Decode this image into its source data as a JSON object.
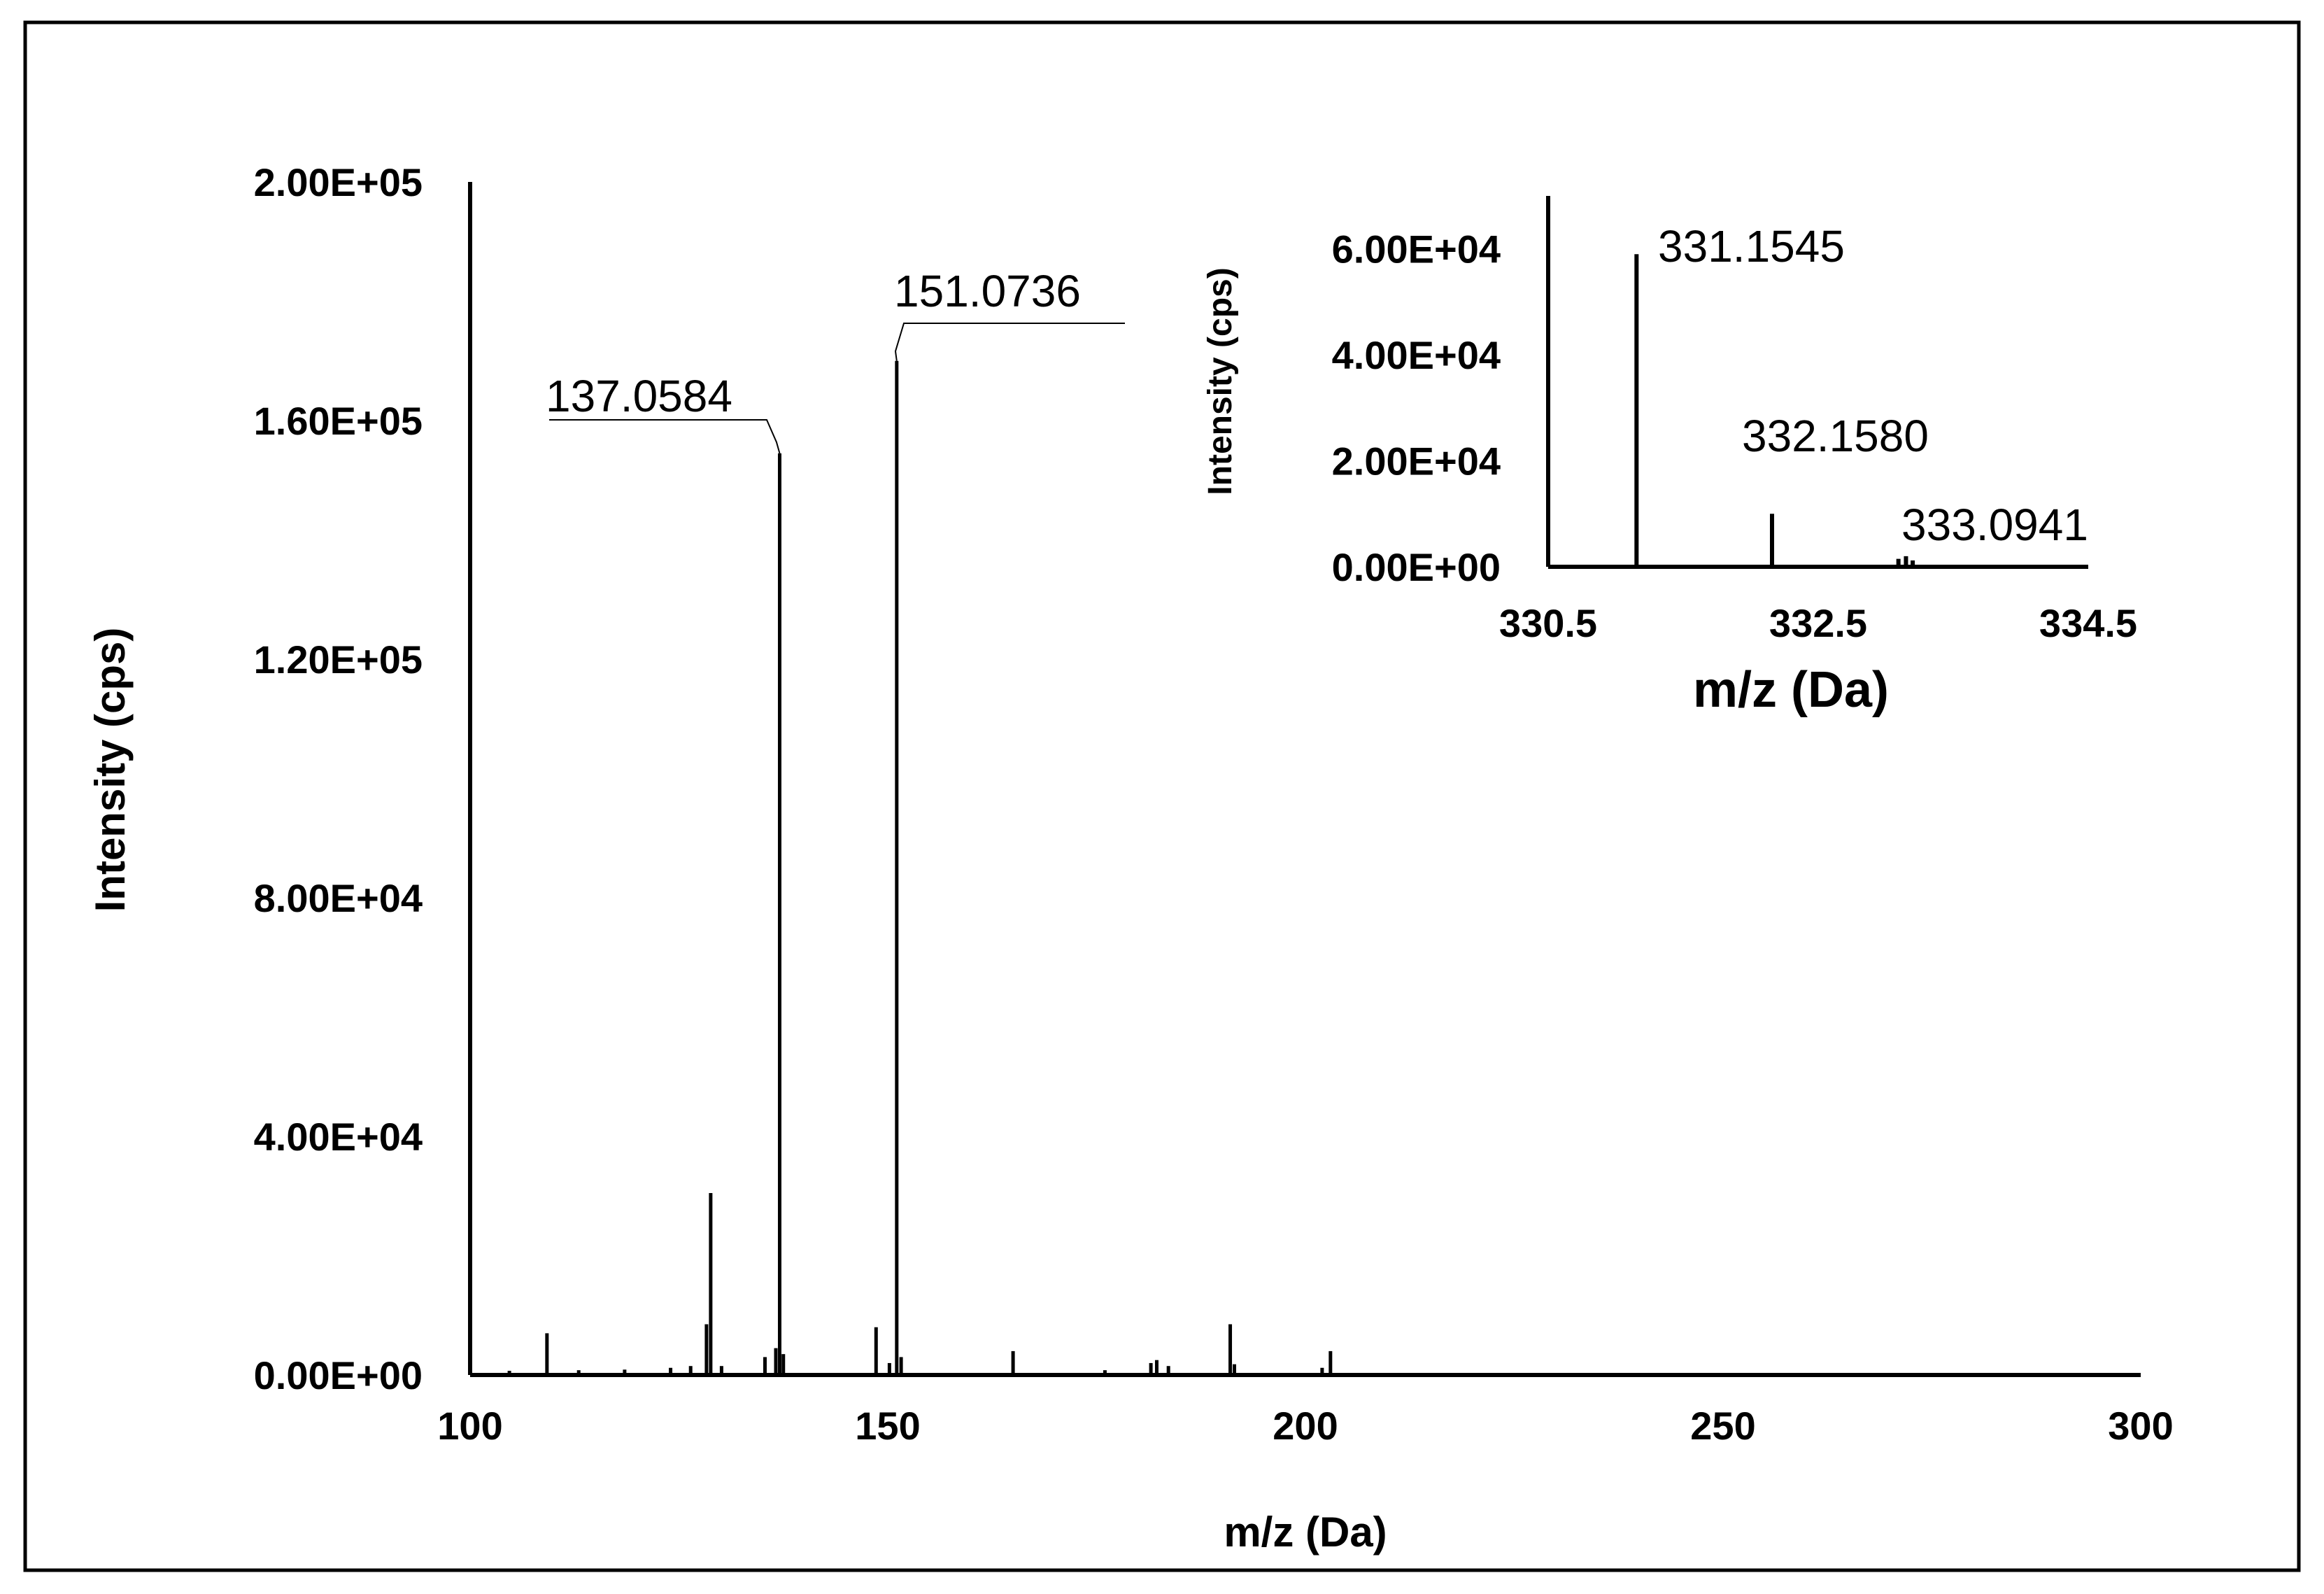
{
  "chart_data": [
    {
      "type": "bar",
      "title": "",
      "xlabel": "m/z (Da)",
      "ylabel": "Intensity (cps)",
      "xlim": [
        100,
        300
      ],
      "ylim": [
        0,
        200000
      ],
      "x_ticks": [
        100,
        150,
        200,
        250,
        300
      ],
      "x_tick_labels": [
        "100",
        "150",
        "200",
        "250",
        "300"
      ],
      "y_ticks": [
        0,
        40000,
        80000,
        120000,
        160000,
        200000
      ],
      "y_tick_labels": [
        "0.00E+00",
        "4.00E+04",
        "8.00E+04",
        "1.20E+05",
        "1.60E+05",
        "2.00E+05"
      ],
      "grid": false,
      "legend": "none",
      "peaks": [
        {
          "x": 104.7,
          "y": 700
        },
        {
          "x": 109.2,
          "y": 7000
        },
        {
          "x": 113.0,
          "y": 800
        },
        {
          "x": 118.5,
          "y": 900
        },
        {
          "x": 124.0,
          "y": 1200
        },
        {
          "x": 126.4,
          "y": 1500
        },
        {
          "x": 128.3,
          "y": 8500
        },
        {
          "x": 128.8,
          "y": 30500
        },
        {
          "x": 130.1,
          "y": 1500
        },
        {
          "x": 135.3,
          "y": 3000
        },
        {
          "x": 136.6,
          "y": 4500
        },
        {
          "x": 137.0584,
          "y": 154500
        },
        {
          "x": 137.5,
          "y": 3500
        },
        {
          "x": 148.6,
          "y": 8000
        },
        {
          "x": 150.2,
          "y": 2000
        },
        {
          "x": 151.0736,
          "y": 170000
        },
        {
          "x": 151.6,
          "y": 3000
        },
        {
          "x": 165.0,
          "y": 4000
        },
        {
          "x": 176.0,
          "y": 800
        },
        {
          "x": 181.5,
          "y": 2000
        },
        {
          "x": 182.2,
          "y": 2500
        },
        {
          "x": 183.6,
          "y": 1500
        },
        {
          "x": 191.0,
          "y": 8500
        },
        {
          "x": 191.5,
          "y": 1800
        },
        {
          "x": 202.0,
          "y": 1200
        },
        {
          "x": 203.0,
          "y": 4000
        }
      ],
      "annotations": [
        {
          "x": 137.0584,
          "y": 154500,
          "text": "137.0584"
        },
        {
          "x": 151.0736,
          "y": 170000,
          "text": "151.0736"
        }
      ]
    },
    {
      "type": "bar",
      "title": "",
      "xlabel": "m/z (Da)",
      "ylabel": "Intensity (cps)",
      "xlim": [
        330.5,
        334.5
      ],
      "ylim": [
        0,
        70000
      ],
      "x_ticks": [
        330.5,
        332.5,
        334.5
      ],
      "x_tick_labels": [
        "330.5",
        "332.5",
        "334.5"
      ],
      "y_ticks": [
        0,
        20000,
        40000,
        60000
      ],
      "y_tick_labels": [
        "0.00E+00",
        "2.00E+04",
        "4.00E+04",
        "6.00E+04"
      ],
      "grid": false,
      "legend": "none",
      "peaks": [
        {
          "x": 331.1545,
          "y": 59000
        },
        {
          "x": 332.158,
          "y": 10000
        },
        {
          "x": 333.0941,
          "y": 1500
        },
        {
          "x": 333.15,
          "y": 2000
        },
        {
          "x": 333.2,
          "y": 1200
        }
      ],
      "annotations": [
        {
          "x": 331.1545,
          "y": 59000,
          "text": "331.1545"
        },
        {
          "x": 332.158,
          "y": 10000,
          "text": "332.1580"
        },
        {
          "x": 333.0941,
          "y": 1500,
          "text": "333.0941"
        }
      ]
    }
  ]
}
